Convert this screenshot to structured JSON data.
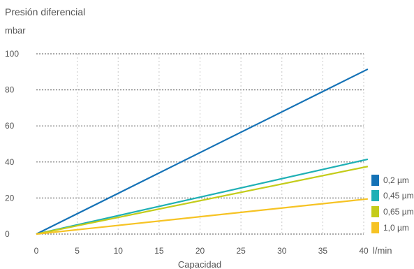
{
  "chart_data": {
    "type": "line",
    "title": "Presión diferencial",
    "ylabel": "mbar",
    "xlabel": "Capacidad",
    "xunit": "l/min",
    "xlim": [
      0,
      40
    ],
    "ylim": [
      0,
      100
    ],
    "xticks": [
      0,
      5,
      10,
      15,
      20,
      25,
      30,
      35,
      40
    ],
    "yticks": [
      0,
      20,
      40,
      60,
      80,
      100
    ],
    "grid": true,
    "legend_position": "bottom-right",
    "series": [
      {
        "name": "0,2 µm",
        "color": "#1572b6",
        "x": [
          0,
          40.5
        ],
        "y": [
          0,
          91.5
        ]
      },
      {
        "name": "0,45 µm",
        "color": "#1fb0b5",
        "x": [
          0,
          40.5
        ],
        "y": [
          0,
          41.5
        ]
      },
      {
        "name": "0,65 µm",
        "color": "#c4cc1a",
        "x": [
          0,
          40.5
        ],
        "y": [
          0,
          37.5
        ]
      },
      {
        "name": "1,0 µm",
        "color": "#f6c324",
        "x": [
          0,
          40.5
        ],
        "y": [
          0,
          19.5
        ]
      }
    ]
  }
}
